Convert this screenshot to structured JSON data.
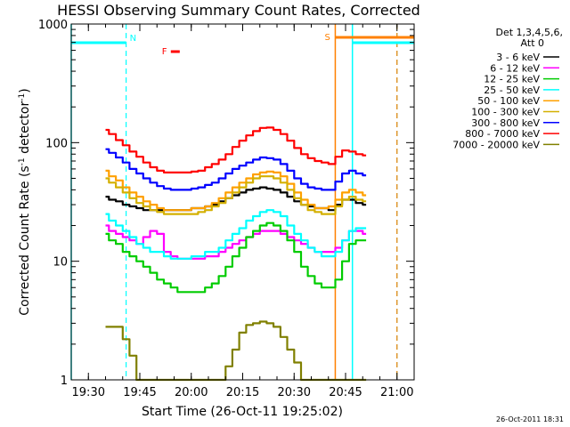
{
  "chart_data": {
    "type": "line",
    "title": "HESSI Observing Summary Count Rates, Corrected",
    "xlabel": "Start Time (26-Oct-11 19:25:02)",
    "ylabel": "Corrected Count Rate (s⁻¹ detector⁻¹)",
    "ylabel_main": "Corrected Count Rate (s",
    "ylabel_sup1": "-1",
    "ylabel_mid": " detector",
    "ylabel_sup2": "-1",
    "ylabel_end": ")",
    "yscale": "log",
    "xlim": [
      "19:25",
      "21:05"
    ],
    "ylim": [
      1,
      1000
    ],
    "x_ticks": [
      "19:30",
      "19:45",
      "20:00",
      "20:15",
      "20:30",
      "20:45",
      "21:00"
    ],
    "y_ticks": [
      "1",
      "10",
      "100",
      "1000"
    ],
    "legend_title": [
      "Det 1,3,4,5,6,",
      "Att 0"
    ],
    "legend_position": "right",
    "footer": "26-Oct-2011 18:31",
    "x_times": [
      "19:35",
      "19:37",
      "19:39",
      "19:41",
      "19:43",
      "19:45",
      "19:47",
      "19:49",
      "19:51",
      "19:53",
      "19:55",
      "19:57",
      "19:59",
      "20:01",
      "20:03",
      "20:05",
      "20:07",
      "20:09",
      "20:11",
      "20:13",
      "20:15",
      "20:17",
      "20:19",
      "20:21",
      "20:23",
      "20:25",
      "20:27",
      "20:29",
      "20:31",
      "20:33",
      "20:35",
      "20:37",
      "20:39",
      "20:41",
      "20:43",
      "20:45",
      "20:47",
      "20:49",
      "20:51"
    ],
    "series": [
      {
        "name": "3 - 6 keV",
        "color": "#000000",
        "values": [
          35,
          33,
          32,
          30,
          29,
          28,
          27,
          27,
          27,
          27,
          27,
          27,
          27,
          28,
          28,
          29,
          30,
          32,
          34,
          36,
          38,
          40,
          41,
          42,
          41,
          40,
          38,
          35,
          32,
          30,
          29,
          28,
          28,
          27,
          30,
          33,
          33,
          31,
          30
        ]
      },
      {
        "name": "6 - 12 keV",
        "color": "#ff00ff",
        "values": [
          20,
          18,
          17,
          16,
          15,
          14,
          16,
          18,
          17,
          12,
          11,
          10.5,
          10.5,
          10.5,
          10.5,
          11,
          11,
          12,
          13,
          14,
          15,
          16,
          17,
          18,
          18,
          18,
          17,
          16,
          15,
          14,
          13,
          12,
          12,
          12,
          13,
          15,
          18,
          18,
          17
        ]
      },
      {
        "name": "12 - 25 keV",
        "color": "#00cc00",
        "values": [
          17,
          15,
          14,
          12,
          11,
          10,
          9,
          8,
          7,
          6.5,
          6,
          5.5,
          5.5,
          5.5,
          5.5,
          6,
          6.5,
          7.5,
          9,
          11,
          13,
          16,
          18,
          20,
          21,
          20,
          18,
          15,
          12,
          9,
          7.5,
          6.5,
          6,
          6,
          7,
          10,
          14,
          15,
          15
        ]
      },
      {
        "name": "25 - 50 keV",
        "color": "#00ffff",
        "values": [
          25,
          22,
          20,
          18,
          16,
          14,
          13,
          12,
          12,
          11,
          10.5,
          10.5,
          10.5,
          11,
          11,
          12,
          12,
          13,
          15,
          17,
          19,
          22,
          24,
          26,
          27,
          26,
          24,
          20,
          17,
          15,
          13,
          12,
          11,
          11,
          12,
          15,
          18,
          19,
          19
        ]
      },
      {
        "name": "50 - 100 keV",
        "color": "#ffa000",
        "values": [
          58,
          52,
          48,
          42,
          38,
          35,
          32,
          30,
          28,
          27,
          27,
          27,
          27,
          28,
          28,
          29,
          31,
          34,
          38,
          42,
          46,
          50,
          54,
          56,
          57,
          56,
          52,
          45,
          38,
          33,
          30,
          28,
          28,
          29,
          33,
          38,
          40,
          38,
          36
        ]
      },
      {
        "name": "100 - 300 keV",
        "color": "#d4b000",
        "values": [
          50,
          46,
          42,
          38,
          34,
          31,
          29,
          27,
          26,
          25,
          25,
          25,
          25,
          25,
          26,
          27,
          29,
          31,
          34,
          38,
          42,
          46,
          50,
          52,
          52,
          50,
          46,
          40,
          34,
          30,
          27,
          26,
          25,
          25,
          29,
          33,
          35,
          33,
          32
        ]
      },
      {
        "name": "300 - 800 keV",
        "color": "#0000ff",
        "values": [
          88,
          82,
          75,
          68,
          60,
          55,
          50,
          46,
          43,
          41,
          40,
          40,
          40,
          41,
          42,
          44,
          46,
          50,
          55,
          60,
          64,
          68,
          72,
          75,
          74,
          72,
          66,
          58,
          50,
          45,
          42,
          41,
          40,
          40,
          47,
          55,
          58,
          55,
          53
        ]
      },
      {
        "name": "800 - 7000 keV",
        "color": "#ff0000",
        "values": [
          128,
          118,
          105,
          95,
          84,
          76,
          68,
          62,
          58,
          56,
          56,
          56,
          56,
          57,
          58,
          62,
          66,
          72,
          80,
          92,
          104,
          115,
          125,
          133,
          134,
          128,
          118,
          104,
          90,
          80,
          74,
          70,
          68,
          66,
          76,
          86,
          84,
          80,
          78
        ]
      },
      {
        "name": "7000 - 20000 keV",
        "color": "#808000",
        "values": [
          2.8,
          2.8,
          2.8,
          2.2,
          1.6,
          1.0,
          1.0,
          1.0,
          1.0,
          1.0,
          1.0,
          1.0,
          1.0,
          1.0,
          1.0,
          1.0,
          1.0,
          1.0,
          1.3,
          1.8,
          2.5,
          2.9,
          3.0,
          3.1,
          3.0,
          2.8,
          2.3,
          1.8,
          1.4,
          1.0,
          1.0,
          1.0,
          1.0,
          1.0,
          1.0,
          1.0,
          1.0,
          1.0,
          1.0
        ]
      }
    ],
    "annotations": [
      {
        "label": "N",
        "time": "19:41",
        "color": "#00ffff"
      },
      {
        "label": "F",
        "time": "19:53",
        "color": "#ff0000"
      },
      {
        "label": "S",
        "time": "20:42",
        "color": "#ff8000"
      }
    ],
    "markers": [
      {
        "name": "night",
        "color": "#00ffff",
        "solid_at": [
          "19:25",
          "20:47"
        ],
        "dashed_at": [
          "19:41",
          "21:00"
        ]
      },
      {
        "name": "saa",
        "color": "#ff8000",
        "solid_at": [
          "20:42"
        ],
        "dashed_at": [
          "21:00"
        ]
      }
    ]
  }
}
